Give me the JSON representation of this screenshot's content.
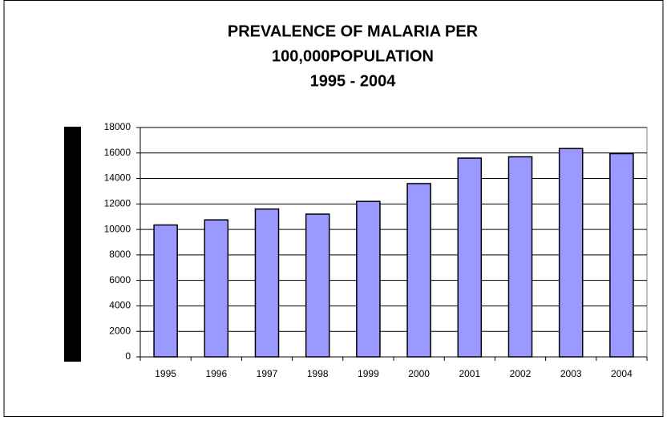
{
  "chart_data": {
    "type": "bar",
    "title": [
      "PREVALENCE OF MALARIA PER",
      "100,000POPULATION",
      "1995 - 2004"
    ],
    "categories": [
      "1995",
      "1996",
      "1997",
      "1998",
      "1999",
      "2000",
      "2001",
      "2002",
      "2003",
      "2004"
    ],
    "values": [
      10350,
      10750,
      11600,
      11200,
      12200,
      13600,
      15600,
      15700,
      16350,
      15950
    ],
    "color": "#9999ff",
    "ylim": [
      0,
      18000
    ],
    "yticks": [
      0,
      2000,
      4000,
      6000,
      8000,
      10000,
      12000,
      14000,
      16000,
      18000
    ],
    "grid": true
  }
}
